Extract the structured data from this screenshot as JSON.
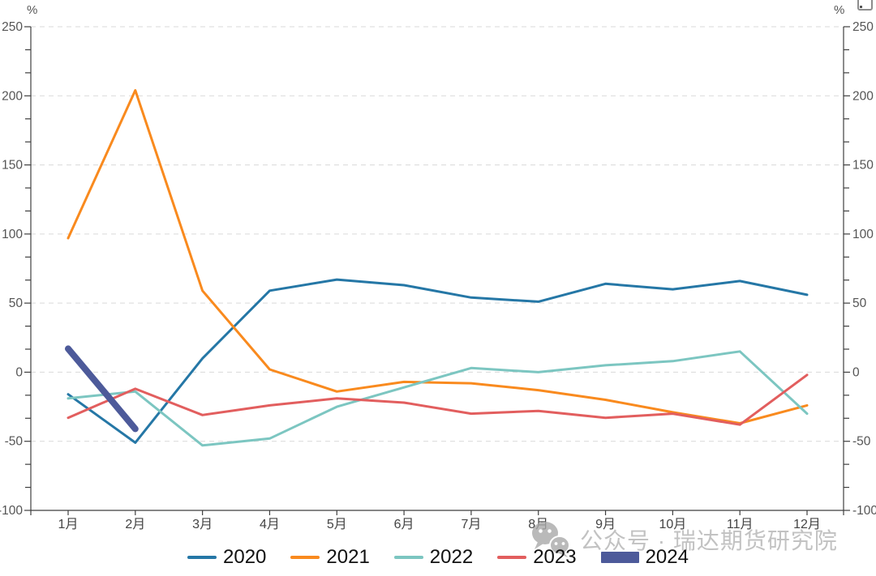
{
  "chart": {
    "unit_left": "%",
    "unit_right": "%"
  },
  "chart_data": {
    "type": "line",
    "title": "",
    "categories": [
      "1月",
      "2月",
      "3月",
      "4月",
      "5月",
      "6月",
      "7月",
      "8月",
      "9月",
      "10月",
      "11月",
      "12月"
    ],
    "ylim": [
      -100,
      250
    ],
    "y_ticks": [
      250,
      200,
      150,
      100,
      50,
      0,
      -50,
      -100
    ],
    "grid": "horizontal-dashed",
    "legend_position": "bottom-center",
    "series": [
      {
        "name": "2020",
        "color": "#2577a6",
        "line_width": 3,
        "values": [
          -16,
          -51,
          10,
          59,
          67,
          63,
          54,
          51,
          64,
          60,
          66,
          56
        ]
      },
      {
        "name": "2021",
        "color": "#f98a1e",
        "line_width": 3,
        "values": [
          97,
          204,
          59,
          2,
          -14,
          -7,
          -8,
          -13,
          -20,
          -29,
          -37,
          -24
        ]
      },
      {
        "name": "2022",
        "color": "#7cc6c1",
        "line_width": 3,
        "values": [
          -19,
          -14,
          -53,
          -48,
          -25,
          -11,
          3,
          0,
          5,
          8,
          15,
          -30
        ]
      },
      {
        "name": "2023",
        "color": "#e25e5e",
        "line_width": 3,
        "values": [
          -33,
          -12,
          -31,
          -24,
          -19,
          -22,
          -30,
          -28,
          -33,
          -30,
          -38,
          -2
        ]
      },
      {
        "name": "2024",
        "color": "#4d5a9a",
        "line_width": 8,
        "values": [
          17,
          -41,
          null,
          null,
          null,
          null,
          null,
          null,
          null,
          null,
          null,
          null
        ]
      }
    ]
  },
  "watermark": {
    "icon": "wechat-icon",
    "text": "公众号 · 瑞达期货研究院"
  }
}
